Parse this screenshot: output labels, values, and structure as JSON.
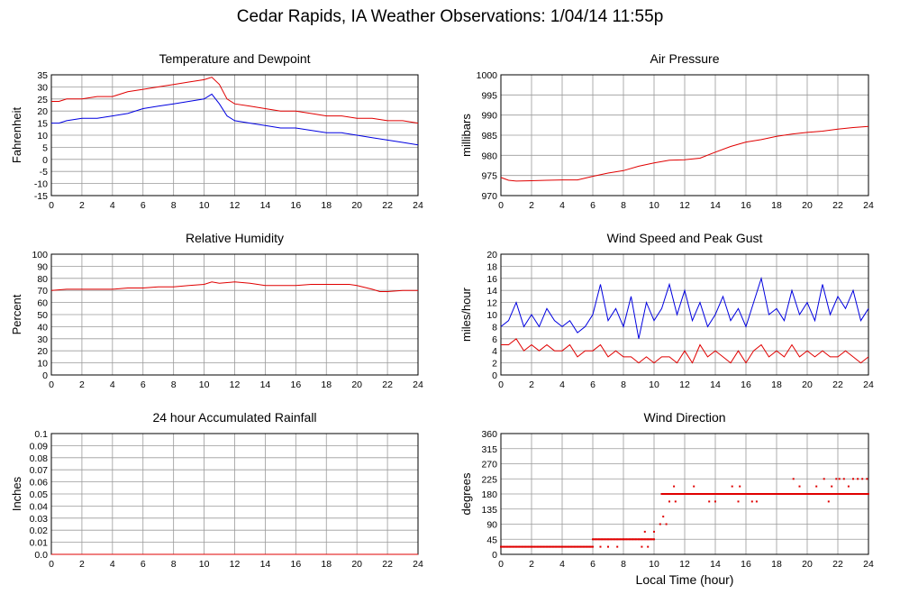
{
  "page_title": "Cedar Rapids, IA Weather Observations: 1/04/14 11:55p",
  "x_axis": {
    "label": "Local Time (hour)",
    "ticks": [
      0,
      2,
      4,
      6,
      8,
      10,
      12,
      14,
      16,
      18,
      20,
      22,
      24
    ],
    "range": [
      0,
      24
    ]
  },
  "chart_data": [
    {
      "id": "temperature",
      "type": "line",
      "title": "Temperature and Dewpoint",
      "ylabel": "Fahrenheit",
      "xlabel": "",
      "ylim": [
        -15,
        35
      ],
      "yticks": [
        -15,
        -10,
        -5,
        0,
        5,
        10,
        15,
        20,
        25,
        30,
        35
      ],
      "grid": true,
      "series": [
        {
          "color": "#e00000",
          "x": [
            0,
            0.5,
            1,
            2,
            3,
            4,
            5,
            6,
            7,
            8,
            9,
            10,
            10.5,
            11,
            11.5,
            12,
            13,
            14,
            15,
            16,
            17,
            18,
            19,
            20,
            21,
            22,
            23,
            24
          ],
          "values": [
            24,
            24,
            25,
            25,
            26,
            26,
            28,
            29,
            30,
            31,
            32,
            33,
            34,
            31,
            25,
            23,
            22,
            21,
            20,
            20,
            19,
            18,
            18,
            17,
            17,
            16,
            16,
            15
          ]
        },
        {
          "color": "#0000e0",
          "x": [
            0,
            0.5,
            1,
            2,
            3,
            4,
            5,
            6,
            7,
            8,
            9,
            10,
            10.5,
            11,
            11.5,
            12,
            13,
            14,
            15,
            16,
            17,
            18,
            19,
            20,
            21,
            22,
            23,
            24
          ],
          "values": [
            15,
            15,
            16,
            17,
            17,
            18,
            19,
            21,
            22,
            23,
            24,
            25,
            27,
            23,
            18,
            16,
            15,
            14,
            13,
            13,
            12,
            11,
            11,
            10,
            9,
            8,
            7,
            6
          ]
        }
      ]
    },
    {
      "id": "pressure",
      "type": "line",
      "title": "Air Pressure",
      "ylabel": "millibars",
      "xlabel": "",
      "ylim": [
        970,
        1000
      ],
      "yticks": [
        970,
        975,
        980,
        985,
        990,
        995,
        1000
      ],
      "grid": true,
      "series": [
        {
          "color": "#e00000",
          "x": [
            0,
            0.5,
            1,
            2,
            3,
            4,
            5,
            6,
            7,
            8,
            9,
            10,
            11,
            12,
            13,
            14,
            15,
            16,
            17,
            18,
            19,
            20,
            21,
            22,
            23,
            24
          ],
          "values": [
            974.5,
            973.8,
            973.6,
            973.7,
            973.8,
            973.9,
            973.9,
            974.8,
            975.6,
            976.2,
            977.3,
            978.1,
            978.8,
            978.9,
            979.3,
            980.8,
            982.2,
            983.3,
            983.9,
            984.7,
            985.3,
            985.7,
            986.0,
            986.5,
            986.9,
            987.2
          ]
        }
      ]
    },
    {
      "id": "humidity",
      "type": "line",
      "title": "Relative Humidity",
      "ylabel": "Percent",
      "xlabel": "",
      "ylim": [
        0,
        100
      ],
      "yticks": [
        0,
        10,
        20,
        30,
        40,
        50,
        60,
        70,
        80,
        90,
        100
      ],
      "grid": true,
      "series": [
        {
          "color": "#e00000",
          "x": [
            0,
            1,
            2,
            3,
            4,
            5,
            6,
            7,
            8,
            9,
            10,
            10.5,
            11,
            12,
            13,
            14,
            15,
            16,
            17,
            18,
            19,
            19.5,
            20,
            21,
            21.5,
            22,
            23,
            24
          ],
          "values": [
            70,
            71,
            71,
            71,
            71,
            72,
            72,
            73,
            73,
            74,
            75,
            77,
            76,
            77,
            76,
            74,
            74,
            74,
            75,
            75,
            75,
            75,
            74,
            71,
            69,
            69,
            70,
            70
          ]
        }
      ]
    },
    {
      "id": "wind_speed",
      "type": "line",
      "title": "Wind Speed and Peak Gust",
      "ylabel": "miles/hour",
      "xlabel": "",
      "ylim": [
        0,
        20
      ],
      "yticks": [
        0,
        2,
        4,
        6,
        8,
        10,
        12,
        14,
        16,
        18,
        20
      ],
      "grid": true,
      "series": [
        {
          "color": "#0000e0",
          "x": [
            0,
            0.5,
            1,
            1.5,
            2,
            2.5,
            3,
            3.5,
            4,
            4.5,
            5,
            5.5,
            6,
            6.5,
            7,
            7.5,
            8,
            8.5,
            9,
            9.5,
            10,
            10.5,
            11,
            11.5,
            12,
            12.5,
            13,
            13.5,
            14,
            14.5,
            15,
            15.5,
            16,
            16.5,
            17,
            17.5,
            18,
            18.5,
            19,
            19.5,
            20,
            20.5,
            21,
            21.5,
            22,
            22.5,
            23,
            23.5,
            24
          ],
          "values": [
            8,
            9,
            12,
            8,
            10,
            8,
            11,
            9,
            8,
            9,
            7,
            8,
            10,
            15,
            9,
            11,
            8,
            13,
            6,
            12,
            9,
            11,
            15,
            10,
            14,
            9,
            12,
            8,
            10,
            13,
            9,
            11,
            8,
            12,
            16,
            10,
            11,
            9,
            14,
            10,
            12,
            9,
            15,
            10,
            13,
            11,
            14,
            9,
            11
          ]
        },
        {
          "color": "#e00000",
          "x": [
            0,
            0.5,
            1,
            1.5,
            2,
            2.5,
            3,
            3.5,
            4,
            4.5,
            5,
            5.5,
            6,
            6.5,
            7,
            7.5,
            8,
            8.5,
            9,
            9.5,
            10,
            10.5,
            11,
            11.5,
            12,
            12.5,
            13,
            13.5,
            14,
            14.5,
            15,
            15.5,
            16,
            16.5,
            17,
            17.5,
            18,
            18.5,
            19,
            19.5,
            20,
            20.5,
            21,
            21.5,
            22,
            22.5,
            23,
            23.5,
            24
          ],
          "values": [
            5,
            5,
            6,
            4,
            5,
            4,
            5,
            4,
            4,
            5,
            3,
            4,
            4,
            5,
            3,
            4,
            3,
            3,
            2,
            3,
            2,
            3,
            3,
            2,
            4,
            2,
            5,
            3,
            4,
            3,
            2,
            4,
            2,
            4,
            5,
            3,
            4,
            3,
            5,
            3,
            4,
            3,
            4,
            3,
            3,
            4,
            3,
            2,
            3
          ]
        }
      ]
    },
    {
      "id": "rainfall",
      "type": "line",
      "title": "24 hour Accumulated Rainfall",
      "ylabel": "Inches",
      "xlabel": "",
      "ylim": [
        0,
        0.1
      ],
      "yticks": [
        "0.0",
        "0.01",
        "0.02",
        "0.03",
        "0.04",
        "0.05",
        "0.06",
        "0.07",
        "0.08",
        "0.09",
        "0.1"
      ],
      "grid": true,
      "series": [
        {
          "color": "#e00000",
          "x": [
            0,
            24
          ],
          "values": [
            0,
            0
          ]
        }
      ]
    },
    {
      "id": "wind_direction",
      "type": "scatter",
      "title": "Wind Direction",
      "ylabel": "degrees",
      "xlabel": "Local Time (hour)",
      "ylim": [
        0,
        360
      ],
      "yticks": [
        0,
        45,
        90,
        135,
        180,
        225,
        270,
        315,
        360
      ],
      "grid": true,
      "series": [
        {
          "color": "#e00000",
          "segments": [
            {
              "x_start": 0,
              "x_end": 6,
              "value": 22.5
            },
            {
              "x_start": 6,
              "x_end": 10,
              "value": 45
            },
            {
              "x_start": 10.5,
              "x_end": 24,
              "value": 180
            }
          ],
          "extra_points": [
            {
              "x": 6.5,
              "y": 22.5
            },
            {
              "x": 7.0,
              "y": 22.5
            },
            {
              "x": 7.6,
              "y": 22.5
            },
            {
              "x": 9.2,
              "y": 22.5
            },
            {
              "x": 9.6,
              "y": 22.5
            },
            {
              "x": 9.4,
              "y": 67.5
            },
            {
              "x": 10.0,
              "y": 67.5
            },
            {
              "x": 10.4,
              "y": 90
            },
            {
              "x": 10.8,
              "y": 90
            },
            {
              "x": 10.6,
              "y": 112.5
            },
            {
              "x": 11.0,
              "y": 157.5
            },
            {
              "x": 11.4,
              "y": 157.5
            },
            {
              "x": 11.3,
              "y": 202.5
            },
            {
              "x": 12.6,
              "y": 202.5
            },
            {
              "x": 13.6,
              "y": 157.5
            },
            {
              "x": 14.0,
              "y": 157.5
            },
            {
              "x": 15.1,
              "y": 202.5
            },
            {
              "x": 15.5,
              "y": 157.5
            },
            {
              "x": 15.6,
              "y": 202.5
            },
            {
              "x": 16.4,
              "y": 157.5
            },
            {
              "x": 16.7,
              "y": 157.5
            },
            {
              "x": 19.1,
              "y": 225
            },
            {
              "x": 19.5,
              "y": 202.5
            },
            {
              "x": 20.6,
              "y": 202.5
            },
            {
              "x": 21.1,
              "y": 225
            },
            {
              "x": 21.6,
              "y": 202.5
            },
            {
              "x": 21.9,
              "y": 225
            },
            {
              "x": 22.1,
              "y": 225
            },
            {
              "x": 22.4,
              "y": 225
            },
            {
              "x": 22.7,
              "y": 202.5
            },
            {
              "x": 23.0,
              "y": 225
            },
            {
              "x": 23.3,
              "y": 225
            },
            {
              "x": 23.6,
              "y": 225
            },
            {
              "x": 23.9,
              "y": 225
            },
            {
              "x": 21.4,
              "y": 157.5
            },
            {
              "x": 22.8,
              "y": 180
            }
          ]
        }
      ]
    }
  ]
}
